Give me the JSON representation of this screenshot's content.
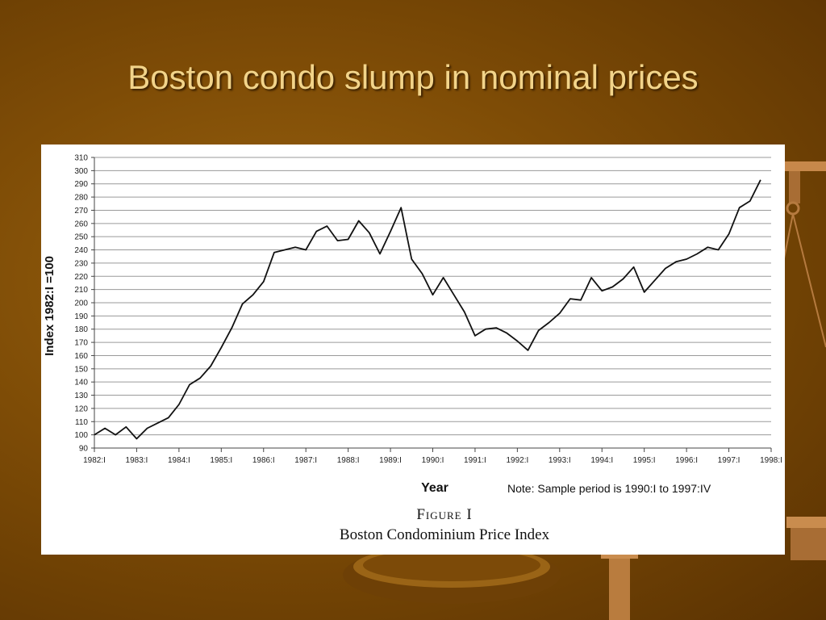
{
  "slide": {
    "title": "Boston condo slump in nominal prices"
  },
  "figure": {
    "label": "Figure I",
    "caption": "Boston Condominium Price Index",
    "note": "Note: Sample period is 1990:I to 1997:IV"
  },
  "chart_data": {
    "type": "line",
    "title": "",
    "xlabel": "Year",
    "ylabel": "Index 1982:I =100",
    "ylim": [
      90,
      310
    ],
    "xlim": [
      1982.0,
      1998.0
    ],
    "grid": true,
    "line_color": "#111111",
    "y_ticks": [
      90,
      100,
      110,
      120,
      130,
      140,
      150,
      160,
      170,
      180,
      190,
      200,
      210,
      220,
      230,
      240,
      250,
      260,
      270,
      280,
      290,
      300,
      310
    ],
    "x_ticks": [
      {
        "x": 1982,
        "label": "1982:I"
      },
      {
        "x": 1983,
        "label": "1983:I"
      },
      {
        "x": 1984,
        "label": "1984:I"
      },
      {
        "x": 1985,
        "label": "1985:I"
      },
      {
        "x": 1986,
        "label": "1986:I"
      },
      {
        "x": 1987,
        "label": "1987:I"
      },
      {
        "x": 1988,
        "label": "1988:I"
      },
      {
        "x": 1989,
        "label": "1989:I"
      },
      {
        "x": 1990,
        "label": "1990:I"
      },
      {
        "x": 1991,
        "label": "1991:I"
      },
      {
        "x": 1992,
        "label": "1992:I"
      },
      {
        "x": 1993,
        "label": "1993:I"
      },
      {
        "x": 1994,
        "label": "1994:I"
      },
      {
        "x": 1995,
        "label": "1995:I"
      },
      {
        "x": 1996,
        "label": "1996:I"
      },
      {
        "x": 1997,
        "label": "1997:I"
      },
      {
        "x": 1998,
        "label": "1998:I"
      }
    ],
    "series": [
      {
        "x": [
          1982.0,
          1982.25,
          1982.5,
          1982.75,
          1983.0,
          1983.25,
          1983.5,
          1983.75,
          1984.0,
          1984.25,
          1984.5,
          1984.75,
          1985.0,
          1985.25,
          1985.5,
          1985.75,
          1986.0,
          1986.25,
          1986.5,
          1986.75,
          1987.0,
          1987.25,
          1987.5,
          1987.75,
          1988.0,
          1988.25,
          1988.5,
          1988.75,
          1989.0,
          1989.25,
          1989.5,
          1989.75,
          1990.0,
          1990.25,
          1990.5,
          1990.75,
          1991.0,
          1991.25,
          1991.5,
          1991.75,
          1992.0,
          1992.25,
          1992.5,
          1992.75,
          1993.0,
          1993.25,
          1993.5,
          1993.75,
          1994.0,
          1994.25,
          1994.5,
          1994.75,
          1995.0,
          1995.25,
          1995.5,
          1995.75,
          1996.0,
          1996.25,
          1996.5,
          1996.75,
          1997.0,
          1997.25,
          1997.5,
          1997.75
        ],
        "values": [
          100,
          105,
          100,
          106,
          97,
          105,
          109,
          113,
          123,
          138,
          143,
          152,
          166,
          181,
          199,
          206,
          216,
          238,
          240,
          242,
          240,
          254,
          258,
          247,
          248,
          262,
          253,
          237,
          254,
          272,
          233,
          222,
          206,
          219,
          206,
          193,
          175,
          180,
          181,
          177,
          171,
          164,
          179,
          185,
          192,
          203,
          202,
          219,
          209,
          212,
          218,
          227,
          208,
          217,
          226,
          231,
          233,
          237,
          242,
          240,
          252,
          272,
          277,
          293
        ]
      }
    ]
  }
}
